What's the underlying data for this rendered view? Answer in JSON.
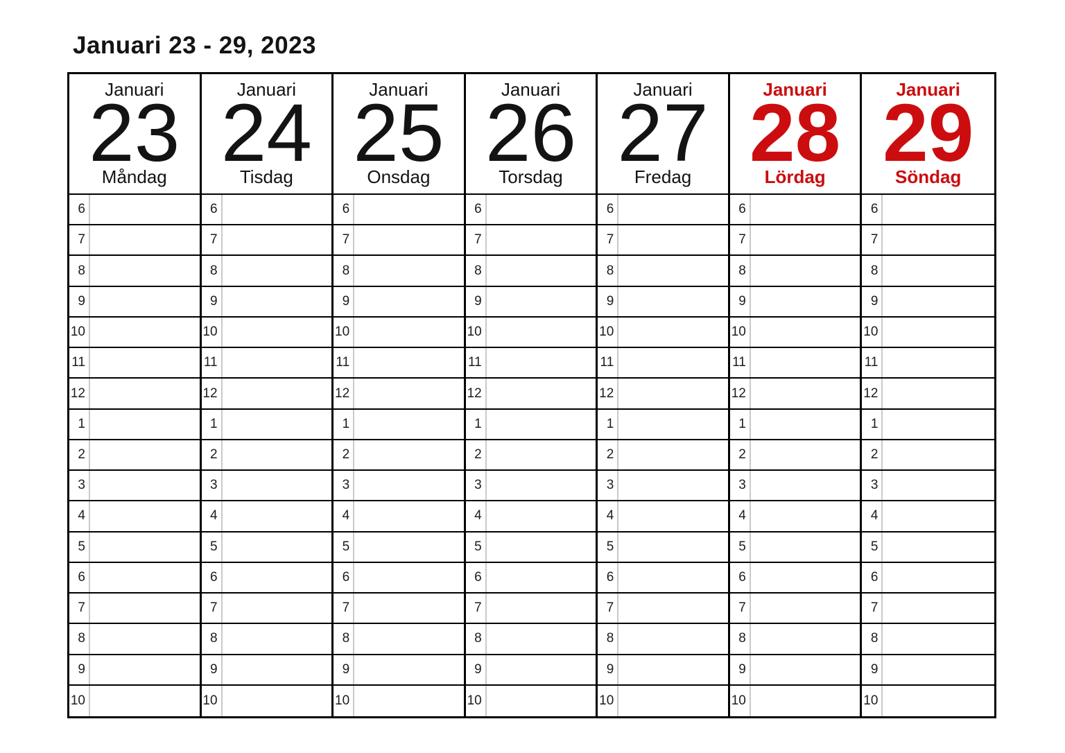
{
  "title": "Januari 23 - 29, 2023",
  "colors": {
    "accent_red": "#CB0D0F",
    "grid_black": "#000000",
    "hour_divider_gray": "#C9C9C9"
  },
  "days": [
    {
      "month": "Januari",
      "date": "23",
      "weekday": "Måndag",
      "weekend": false
    },
    {
      "month": "Januari",
      "date": "24",
      "weekday": "Tisdag",
      "weekend": false
    },
    {
      "month": "Januari",
      "date": "25",
      "weekday": "Onsdag",
      "weekend": false
    },
    {
      "month": "Januari",
      "date": "26",
      "weekday": "Torsdag",
      "weekend": false
    },
    {
      "month": "Januari",
      "date": "27",
      "weekday": "Fredag",
      "weekend": false
    },
    {
      "month": "Januari",
      "date": "28",
      "weekday": "Lördag",
      "weekend": true
    },
    {
      "month": "Januari",
      "date": "29",
      "weekday": "Söndag",
      "weekend": true
    }
  ],
  "hours": [
    "6",
    "7",
    "8",
    "9",
    "10",
    "11",
    "12",
    "1",
    "2",
    "3",
    "4",
    "5",
    "6",
    "7",
    "8",
    "9",
    "10"
  ]
}
